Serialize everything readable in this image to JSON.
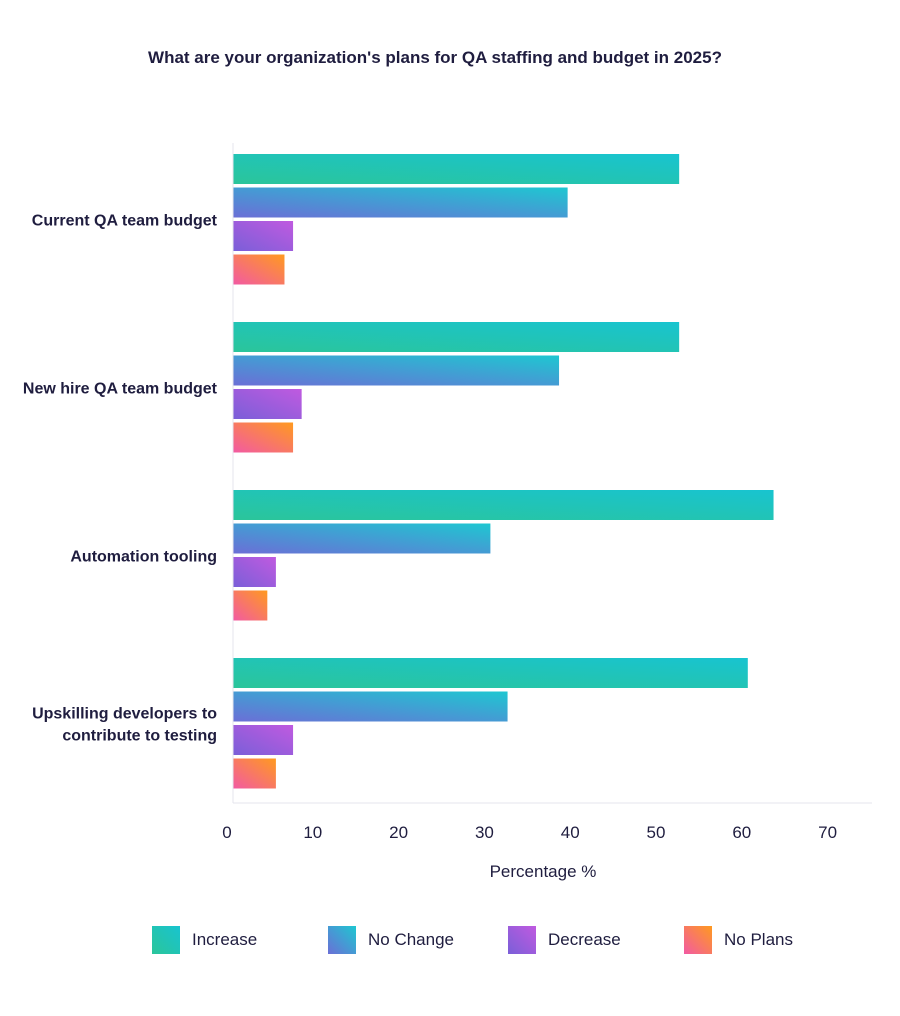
{
  "chart_data": {
    "type": "bar",
    "orientation": "horizontal",
    "title": "What are your organization's plans for QA staffing and budget in 2025?",
    "xlabel": "Percentage %",
    "ylabel": "",
    "xlim": [
      0,
      70
    ],
    "xticks": [
      0,
      10,
      20,
      30,
      40,
      50,
      60,
      70
    ],
    "categories": [
      [
        "Current QA team budget"
      ],
      [
        "New hire QA team budget"
      ],
      [
        "Automation tooling"
      ],
      [
        "Upskilling developers to",
        "contribute to testing"
      ]
    ],
    "series": [
      {
        "name": "Increase",
        "values": [
          52,
          52,
          63,
          60
        ],
        "colors": [
          "#2bc59a",
          "#18c4d0"
        ]
      },
      {
        "name": "No Change",
        "values": [
          39,
          38,
          30,
          32
        ],
        "colors": [
          "#6b6fd6",
          "#1ec7d1"
        ]
      },
      {
        "name": "Decrease",
        "values": [
          7,
          8,
          5,
          7
        ],
        "colors": [
          "#7a5fd8",
          "#c05ae0"
        ]
      },
      {
        "name": "No Plans",
        "values": [
          6,
          7,
          4,
          5
        ],
        "colors": [
          "#f25aa3",
          "#ff9a1f"
        ]
      }
    ],
    "legend_position": "bottom",
    "grid": false
  }
}
